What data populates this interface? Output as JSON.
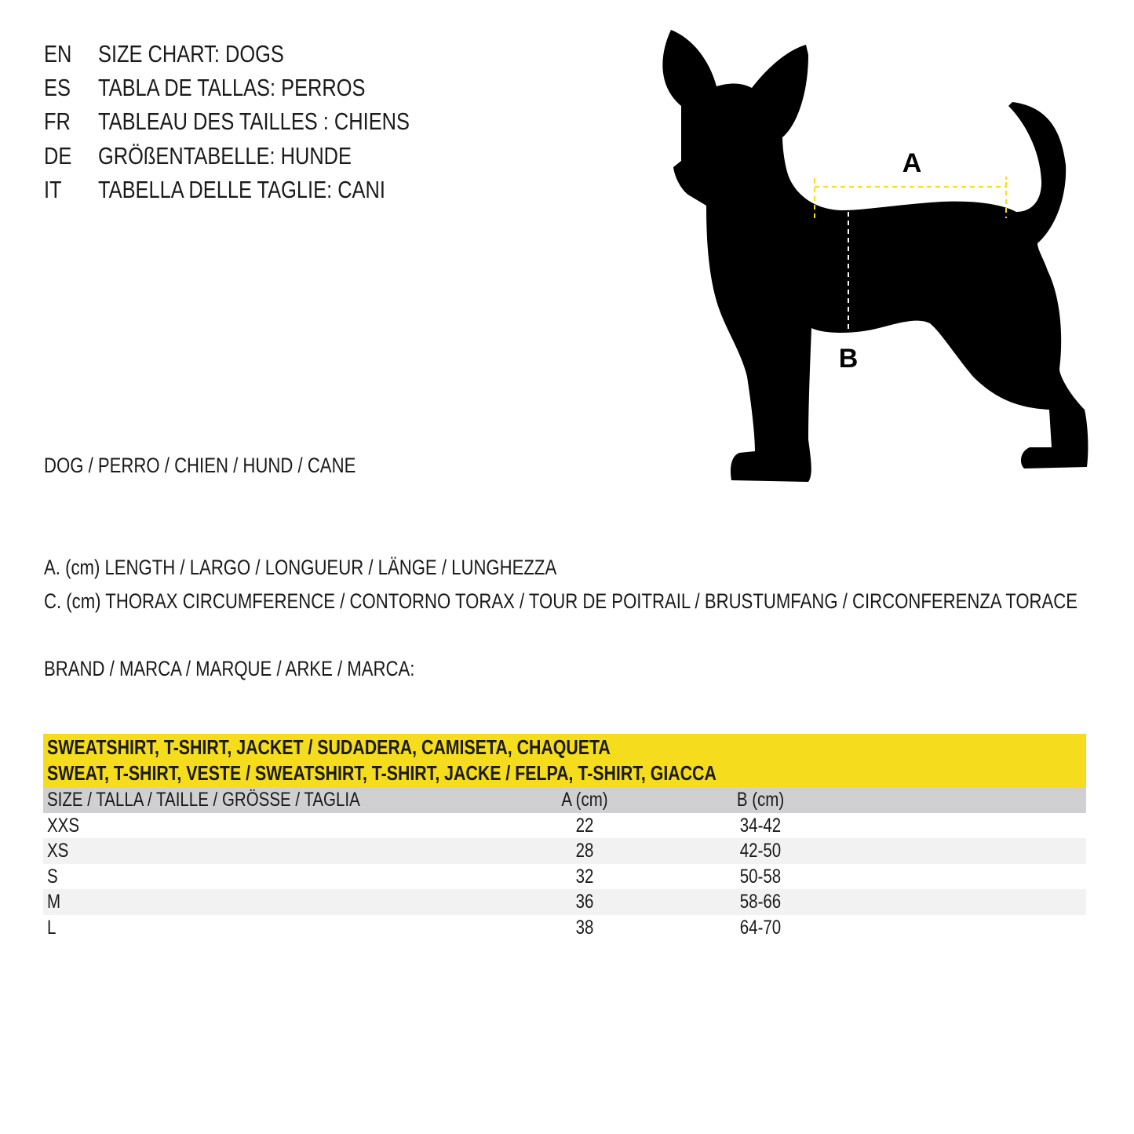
{
  "titles": [
    {
      "code": "EN",
      "text": "SIZE CHART: DOGS"
    },
    {
      "code": "ES",
      "text": "TABLA DE TALLAS: PERROS"
    },
    {
      "code": "FR",
      "text": "TABLEAU DES TAILLES : CHIENS"
    },
    {
      "code": "DE",
      "text": "GRÖßENTABELLE: HUNDE"
    },
    {
      "code": "IT",
      "text": "TABELLA DELLE TAGLIE: CANI"
    }
  ],
  "animal_label": "DOG / PERRO / CHIEN / HUND / CANE",
  "measurements": {
    "a": "A. (cm) LENGTH / LARGO / LONGUEUR / LÄNGE / LUNGHEZZA",
    "c": "C. (cm) THORAX CIRCUMFERENCE / CONTORNO TORAX / TOUR DE POITRAIL / BRUSTUMFANG / CIRCONFERENZA TORACE"
  },
  "brand_label": "BRAND / MARCA / MARQUE / ARKE / MARCA:",
  "diagram": {
    "label_a": "A",
    "label_b": "B",
    "accent_color": "#f5dc1c"
  },
  "table": {
    "title_line1": "SWEATSHIRT, T-SHIRT, JACKET / SUDADERA, CAMISETA, CHAQUETA",
    "title_line2": "SWEAT, T-SHIRT, VESTE / SWEATSHIRT, T-SHIRT, JACKE / FELPA, T-SHIRT, GIACCA",
    "headers": [
      "SIZE / TALLA / TAILLE / GRÖSSE / TAGLIA",
      "A (cm)",
      "B (cm)"
    ],
    "rows": [
      [
        "XXS",
        "22",
        "34-42"
      ],
      [
        "XS",
        "28",
        "42-50"
      ],
      [
        "S",
        "32",
        "50-58"
      ],
      [
        "M",
        "36",
        "58-66"
      ],
      [
        "L",
        "38",
        "64-70"
      ]
    ]
  }
}
